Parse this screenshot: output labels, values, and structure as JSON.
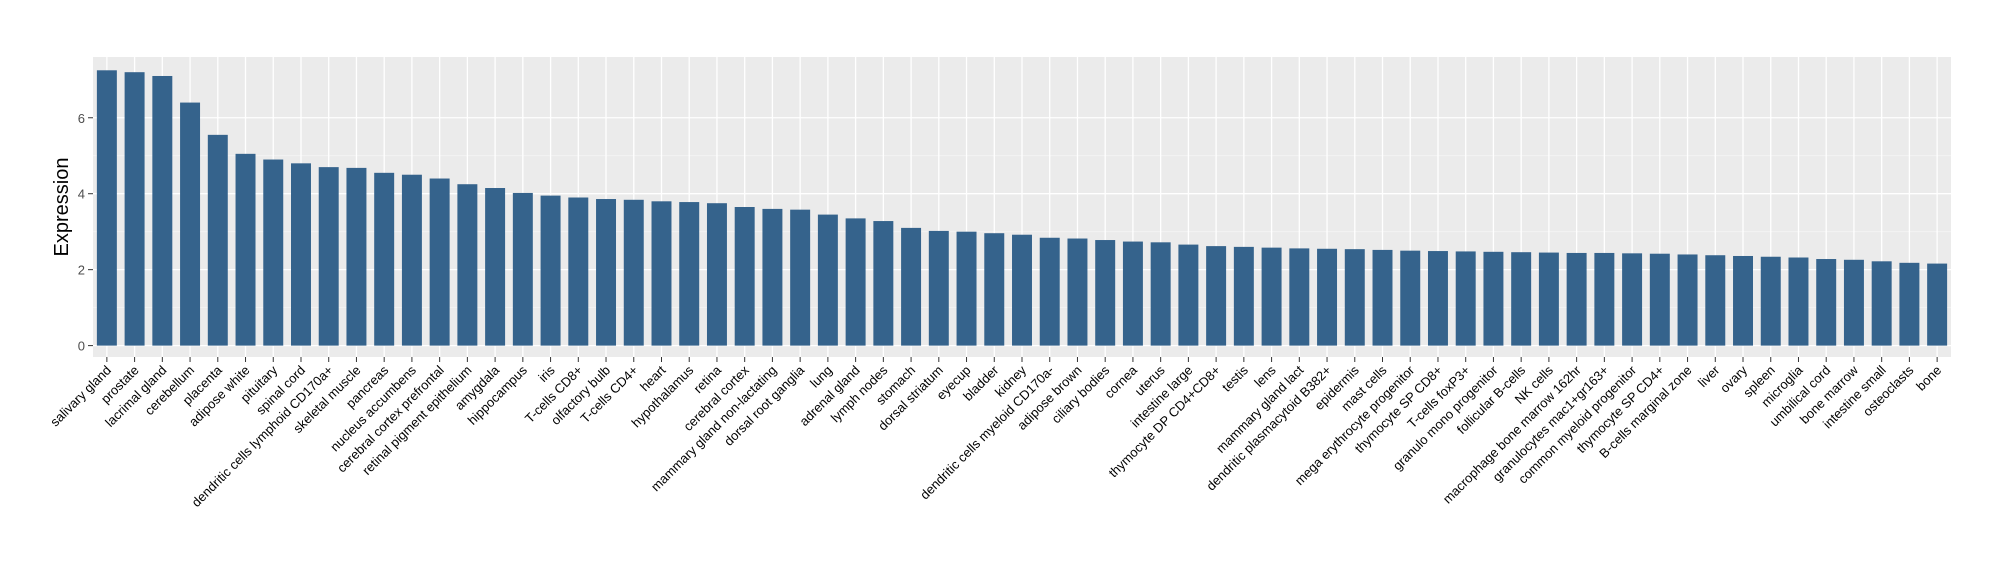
{
  "chart_data": {
    "type": "bar",
    "title": "",
    "xlabel": "",
    "ylabel": "Expression",
    "ylim": [
      -0.3,
      7.6
    ],
    "yticks": [
      0,
      2,
      4,
      6
    ],
    "grid": true,
    "legend": "none",
    "colors": {
      "bar": "#35638C",
      "panel": "#EBEBEB",
      "grid_major": "#FFFFFF",
      "grid_minor": "#F5F5F5",
      "text": "#000000",
      "tick_label": "#4D4D4D"
    },
    "categories": [
      "salivary gland",
      "prostate",
      "lacrimal gland",
      "cerebellum",
      "placenta",
      "adipose white",
      "pituitary",
      "spinal cord",
      "dendritic cells lymphoid CD170a+",
      "skeletal muscle",
      "pancreas",
      "nucleus accumbens",
      "cerebral cortex prefrontal",
      "retinal pigment epithelium",
      "amygdala",
      "hippocampus",
      "iris",
      "T-cells CD8+",
      "olfactory bulb",
      "T-cells CD4+",
      "heart",
      "hypothalamus",
      "retina",
      "cerebral cortex",
      "mammary gland non-lactating",
      "dorsal root ganglia",
      "lung",
      "adrenal gland",
      "lymph nodes",
      "stomach",
      "dorsal striatum",
      "eyecup",
      "bladder",
      "kidney",
      "dendritic cells myeloid CD170a-",
      "adipose brown",
      "ciliary bodies",
      "cornea",
      "uterus",
      "intestine large",
      "thymocyte DP CD4+CD8+",
      "testis",
      "lens",
      "mammary gland lact",
      "dendritic plasmacytoid B382+",
      "epidermis",
      "mast cells",
      "mega erythrocyte progenitor",
      "thymocyte SP CD8+",
      "T-cells foxP3+",
      "granulo mono progenitor",
      "follicular B-cells",
      "NK cells",
      "macrophage bone marrow 162hr",
      "granulocytes mac1+gr163+",
      "common myeloid progenitor",
      "thymocyte SP CD4+",
      "B-cells marginal zone",
      "liver",
      "ovary",
      "spleen",
      "microglia",
      "umbilical cord",
      "bone marrow",
      "intestine small",
      "osteoclasts",
      "bone"
    ],
    "values": [
      7.25,
      7.2,
      7.1,
      6.4,
      5.55,
      5.05,
      4.9,
      4.8,
      4.7,
      4.68,
      4.55,
      4.5,
      4.4,
      4.25,
      4.15,
      4.02,
      3.95,
      3.9,
      3.86,
      3.84,
      3.8,
      3.78,
      3.75,
      3.65,
      3.6,
      3.58,
      3.45,
      3.35,
      3.28,
      3.1,
      3.02,
      3.0,
      2.96,
      2.92,
      2.84,
      2.82,
      2.78,
      2.74,
      2.72,
      2.66,
      2.62,
      2.6,
      2.58,
      2.56,
      2.55,
      2.54,
      2.52,
      2.5,
      2.49,
      2.48,
      2.47,
      2.46,
      2.45,
      2.44,
      2.44,
      2.43,
      2.42,
      2.4,
      2.38,
      2.36,
      2.34,
      2.32,
      2.28,
      2.26,
      2.22,
      2.18,
      2.16
    ]
  }
}
